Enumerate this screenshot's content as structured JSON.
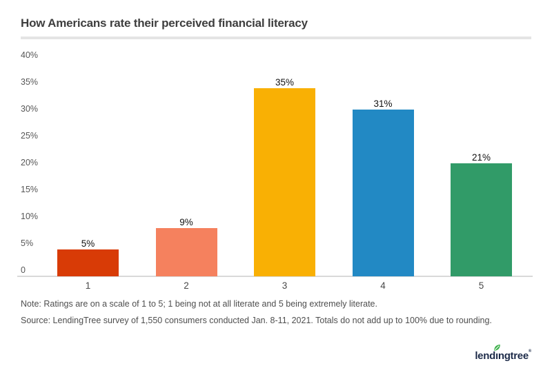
{
  "header": {
    "title": "How Americans rate their perceived financial literacy"
  },
  "chart_data": {
    "type": "bar",
    "title": "How Americans rate their perceived financial literacy",
    "categories": [
      "1",
      "2",
      "3",
      "4",
      "5"
    ],
    "values": [
      5,
      9,
      35,
      31,
      21
    ],
    "value_labels": [
      "5%",
      "9%",
      "35%",
      "31%",
      "21%"
    ],
    "bar_colors": [
      "#d83b06",
      "#f5815e",
      "#f9b004",
      "#2289c4",
      "#319b68"
    ],
    "xlabel": "",
    "ylabel": "",
    "ylim": [
      0,
      40
    ],
    "ytick_values": [
      0,
      5,
      10,
      15,
      20,
      25,
      30,
      35,
      40
    ],
    "ytick_labels": [
      "0",
      "5%",
      "10%",
      "15%",
      "20%",
      "25%",
      "30%",
      "35%",
      "40%"
    ],
    "grid": false,
    "legend": false,
    "value_labels_position": "above-bars"
  },
  "footnotes": {
    "note": "Note: Ratings are on a scale of 1 to 5; 1 being not at all literate and 5 being extremely literate.",
    "source": "Source: LendingTree survey of 1,550 consumers conducted Jan. 8-11, 2021. Totals do not add up to 100% due to rounding."
  },
  "logo": {
    "text": "lendingtree",
    "part1": "lend",
    "dotless_i": "ı",
    "part2": "ngtree",
    "registered": "®",
    "text_color": "#1d2b49",
    "leaf_color": "#3cb14a"
  },
  "colors": {
    "background": "#ffffff",
    "title_text": "#3e3e3e",
    "divider": "#e4e4e4",
    "axis_line": "#d9d9d9",
    "tick_text": "#565656",
    "category_text": "#484848",
    "value_label_text": "#111111",
    "note_text": "#4e4e4e"
  }
}
